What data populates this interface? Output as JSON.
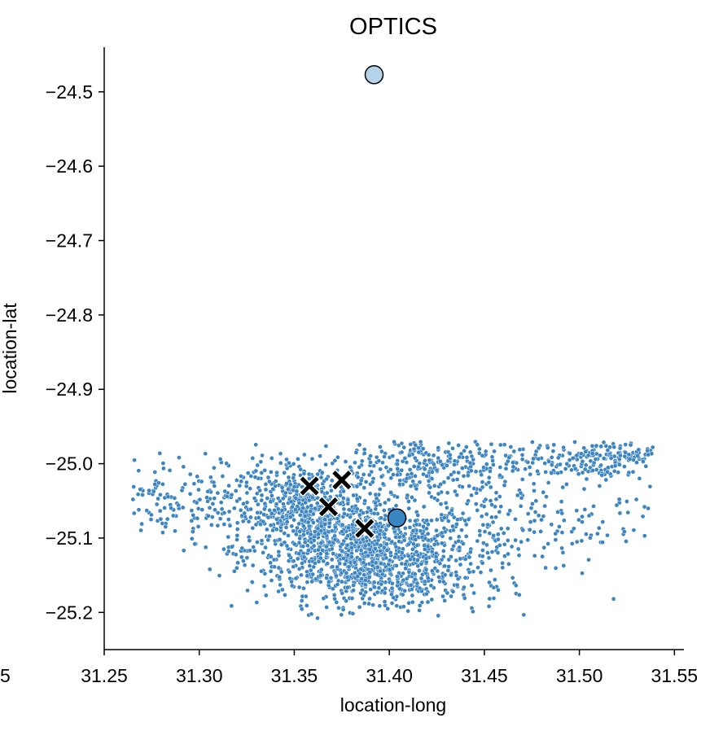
{
  "chart_data": {
    "type": "scatter",
    "title": "OPTICS",
    "xlabel": "location-long",
    "ylabel": "location-lat",
    "xlim": [
      31.25,
      31.555
    ],
    "ylim": [
      -25.25,
      -24.44
    ],
    "x_ticks": [
      31.25,
      31.3,
      31.35,
      31.4,
      31.45,
      31.5,
      31.55
    ],
    "x_tick_labels": [
      "31.25",
      "31.30",
      "31.35",
      "31.40",
      "31.45",
      "31.50",
      "31.55"
    ],
    "partial_left_tick_label": "5",
    "y_ticks": [
      -24.5,
      -24.6,
      -24.7,
      -24.8,
      -24.9,
      -25.0,
      -25.1,
      -25.2
    ],
    "y_tick_labels": [
      "−24.5",
      "−24.6",
      "−24.7",
      "−24.8",
      "−24.9",
      "−25.0",
      "−25.1",
      "−25.2"
    ],
    "grid": false,
    "colors": {
      "points": "#3d85c0",
      "point_edge": "#ffffff",
      "center_light": "#b5d3e8",
      "center_dark": "#3a86c2",
      "cross": "#000000"
    },
    "series": [
      {
        "role": "points",
        "marker": "dot",
        "clusters": [
          {
            "center": [
              31.385,
              -25.115
            ],
            "spread": [
              0.03,
              0.03
            ],
            "count": 900
          },
          {
            "center": [
              31.36,
              -25.06
            ],
            "spread": [
              0.02,
              0.03
            ],
            "count": 350
          },
          {
            "center": [
              31.42,
              -25.0
            ],
            "spread": [
              0.03,
              0.02
            ],
            "count": 300
          },
          {
            "center": [
              31.33,
              -25.05
            ],
            "spread": [
              0.03,
              0.03
            ],
            "count": 200
          },
          {
            "center": [
              31.4,
              -25.16
            ],
            "spread": [
              0.025,
              0.02
            ],
            "count": 250
          },
          {
            "center": [
              31.45,
              -25.08
            ],
            "spread": [
              0.03,
              0.04
            ],
            "count": 220
          },
          {
            "center": [
              31.5,
              -25.0
            ],
            "spread": [
              0.02,
              0.012
            ],
            "count": 120
          },
          {
            "center": [
              31.525,
              -24.985
            ],
            "spread": [
              0.012,
              0.008
            ],
            "count": 90
          },
          {
            "center": [
              31.29,
              -25.04
            ],
            "spread": [
              0.02,
              0.025
            ],
            "count": 80
          },
          {
            "center": [
              31.52,
              -25.07
            ],
            "spread": [
              0.02,
              0.03
            ],
            "count": 30
          }
        ],
        "range_x": [
          31.265,
          31.54
        ],
        "range_y": [
          -25.21,
          -24.97
        ]
      },
      {
        "role": "cluster-centers",
        "marker": "circle",
        "points": [
          {
            "x": 31.392,
            "y": -24.477,
            "shade": "light"
          },
          {
            "x": 31.404,
            "y": -25.073,
            "shade": "dark"
          }
        ]
      },
      {
        "role": "x-markers",
        "marker": "x",
        "points": [
          {
            "x": 31.358,
            "y": -25.03
          },
          {
            "x": 31.375,
            "y": -25.022
          },
          {
            "x": 31.368,
            "y": -25.058
          },
          {
            "x": 31.387,
            "y": -25.087
          }
        ]
      }
    ]
  }
}
